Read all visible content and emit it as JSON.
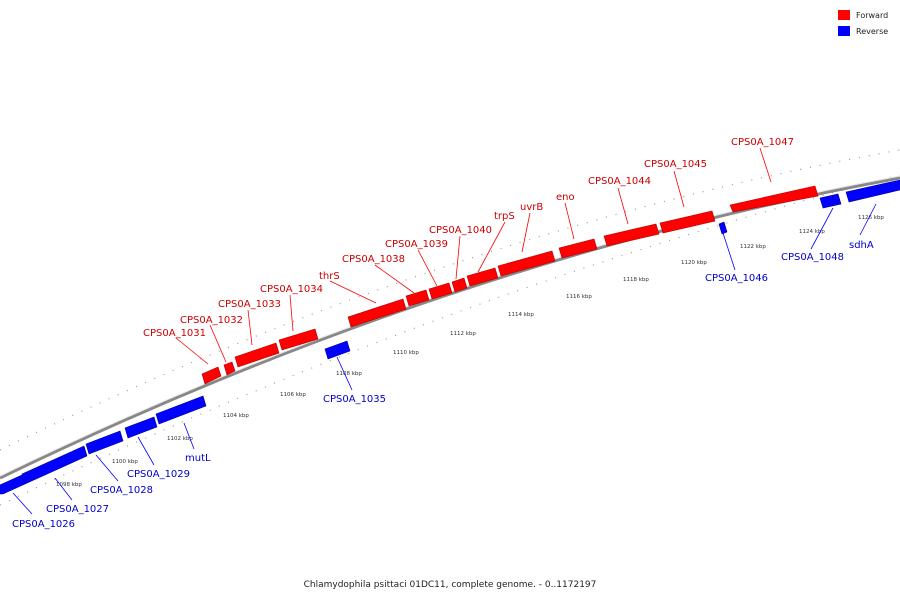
{
  "caption": "Chlamydophila psittaci 01DC11, complete genome. - 0..1172197",
  "legend": [
    {
      "label": "Forward",
      "color": "#ff0000"
    },
    {
      "label": "Reverse",
      "color": "#0000ff"
    }
  ],
  "colors": {
    "forward": "#ff0000",
    "reverse": "#0000ff",
    "backbone": "#888888"
  },
  "ticks": [
    "1098 kbp",
    "1100 kbp",
    "1102 kbp",
    "1104 kbp",
    "1106 kbp",
    "1108 kbp",
    "1110 kbp",
    "1112 kbp",
    "1114 kbp",
    "1116 kbp",
    "1118 kbp",
    "1120 kbp",
    "1122 kbp",
    "1124 kbp",
    "1126 kbp"
  ],
  "forward_labels": [
    "CPS0A_1031",
    "CPS0A_1032",
    "CPS0A_1033",
    "CPS0A_1034",
    "thrS",
    "CPS0A_1038",
    "CPS0A_1039",
    "CPS0A_1040",
    "trpS",
    "uvrB",
    "eno",
    "CPS0A_1044",
    "CPS0A_1045",
    "CPS0A_1047"
  ],
  "reverse_labels": [
    "CPS0A_1026",
    "CPS0A_1027",
    "CPS0A_1028",
    "CPS0A_1029",
    "mutL",
    "CPS0A_1035",
    "CPS0A_1046",
    "CPS0A_1048",
    "sdhA"
  ]
}
